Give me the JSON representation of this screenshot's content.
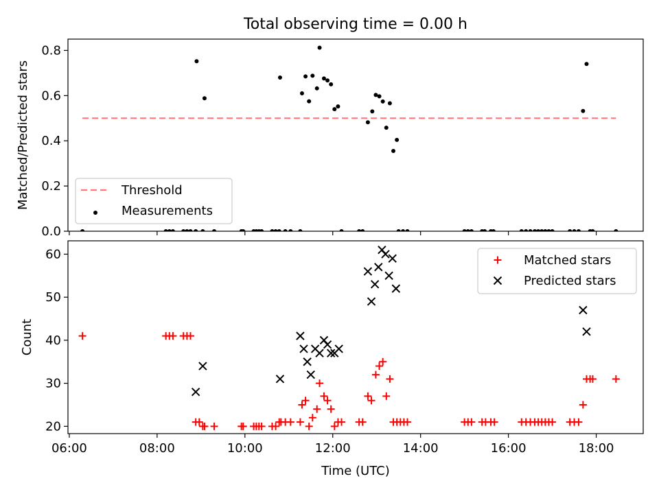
{
  "figure_title": "Total observing time = 0.00 h",
  "chart_data": [
    {
      "type": "scatter",
      "panel": "top",
      "title": "Total observing time = 0.00 h",
      "xlabel": "",
      "ylabel": "Matched/Predicted stars",
      "x_unit": "hours UTC",
      "xlim": [
        5.97,
        19.07
      ],
      "ylim": [
        0.0,
        0.85
      ],
      "xticks": [
        6,
        8,
        10,
        12,
        14,
        16,
        18
      ],
      "xtick_labels": [
        "",
        "",
        "",
        "",
        "",
        "",
        ""
      ],
      "yticks": [
        0.0,
        0.2,
        0.4,
        0.6,
        0.8
      ],
      "ytick_labels": [
        "0.0",
        "0.2",
        "0.4",
        "0.6",
        "0.8"
      ],
      "legend": {
        "position": "lower left",
        "entries": [
          "Threshold",
          "Measurements"
        ]
      },
      "grid": false,
      "series": [
        {
          "name": "Threshold",
          "style": "dashed-line",
          "color": "#ff7777",
          "x": [
            6.3,
            18.45
          ],
          "y": [
            0.5,
            0.5
          ]
        },
        {
          "name": "Measurements",
          "style": "dot",
          "color": "#000000",
          "x": [
            6.3,
            8.2,
            8.28,
            8.36,
            8.6,
            8.68,
            8.76,
            8.88,
            8.9,
            9.04,
            9.08,
            9.3,
            9.92,
            9.96,
            10.2,
            10.26,
            10.32,
            10.38,
            10.62,
            10.7,
            10.78,
            10.8,
            10.92,
            11.04,
            11.26,
            11.3,
            11.38,
            11.46,
            11.54,
            11.64,
            11.7,
            11.8,
            11.88,
            11.96,
            12.04,
            12.12,
            12.2,
            12.6,
            12.68,
            12.8,
            12.9,
            12.98,
            13.06,
            13.14,
            13.22,
            13.3,
            13.38,
            13.46,
            13.5,
            13.6,
            13.7,
            15.0,
            15.08,
            15.16,
            15.4,
            15.46,
            15.6,
            15.66,
            16.3,
            16.4,
            16.5,
            16.6,
            16.68,
            16.76,
            16.84,
            16.92,
            17.0,
            17.4,
            17.5,
            17.6,
            17.7,
            17.78,
            17.86,
            17.92,
            18.45
          ],
          "y": [
            0.0,
            0.0,
            0.0,
            0.0,
            0.0,
            0.0,
            0.0,
            0.0,
            0.752,
            0.0,
            0.588,
            0.0,
            0.0,
            0.0,
            0.0,
            0.0,
            0.0,
            0.0,
            0.0,
            0.0,
            0.0,
            0.68,
            0.0,
            0.0,
            0.0,
            0.61,
            0.685,
            0.575,
            0.688,
            0.632,
            0.812,
            0.676,
            0.667,
            0.65,
            0.54,
            0.552,
            0.0,
            0.0,
            0.0,
            0.482,
            0.53,
            0.603,
            0.597,
            0.574,
            0.458,
            0.566,
            0.355,
            0.404,
            0.0,
            0.0,
            0.0,
            0.0,
            0.0,
            0.0,
            0.0,
            0.0,
            0.0,
            0.0,
            0.0,
            0.0,
            0.0,
            0.0,
            0.0,
            0.0,
            0.0,
            0.0,
            0.0,
            0.0,
            0.0,
            0.0,
            0.532,
            0.74,
            0.0,
            0.0,
            0.0
          ]
        }
      ]
    },
    {
      "type": "scatter",
      "panel": "bottom",
      "title": "",
      "xlabel": "Time (UTC)",
      "ylabel": "Count",
      "x_unit": "hours UTC",
      "xlim": [
        5.97,
        19.07
      ],
      "ylim": [
        18.3,
        63.1
      ],
      "xticks": [
        6,
        8,
        10,
        12,
        14,
        16,
        18
      ],
      "xtick_labels": [
        "06:00",
        "08:00",
        "10:00",
        "12:00",
        "14:00",
        "16:00",
        "18:00"
      ],
      "yticks": [
        20,
        30,
        40,
        50,
        60
      ],
      "ytick_labels": [
        "20",
        "30",
        "40",
        "50",
        "60"
      ],
      "legend": {
        "position": "upper right",
        "entries": [
          "Matched stars",
          "Predicted stars"
        ]
      },
      "grid": false,
      "series": [
        {
          "name": "Matched stars",
          "marker": "plus",
          "color": "#ff0000",
          "x": [
            6.3,
            8.2,
            8.28,
            8.36,
            8.6,
            8.68,
            8.76,
            8.88,
            8.96,
            9.04,
            9.08,
            9.3,
            9.92,
            9.96,
            10.2,
            10.26,
            10.32,
            10.38,
            10.62,
            10.7,
            10.78,
            10.82,
            10.92,
            11.04,
            11.26,
            11.3,
            11.38,
            11.46,
            11.54,
            11.64,
            11.7,
            11.8,
            11.88,
            11.96,
            12.04,
            12.12,
            12.2,
            12.6,
            12.68,
            12.8,
            12.88,
            12.98,
            13.06,
            13.14,
            13.22,
            13.3,
            13.38,
            13.46,
            13.54,
            13.62,
            13.7,
            15.0,
            15.08,
            15.16,
            15.4,
            15.48,
            15.6,
            15.68,
            16.3,
            16.4,
            16.5,
            16.6,
            16.68,
            16.76,
            16.84,
            16.92,
            17.0,
            17.4,
            17.5,
            17.6,
            17.7,
            17.78,
            17.86,
            17.92,
            18.45
          ],
          "y": [
            41,
            41,
            41,
            41,
            41,
            41,
            41,
            21,
            21,
            20,
            20,
            20,
            20,
            20,
            20,
            20,
            20,
            20,
            20,
            20,
            21,
            21,
            21,
            21,
            21,
            25,
            26,
            20,
            22,
            24,
            30,
            27,
            26,
            24,
            20,
            21,
            21,
            21,
            21,
            27,
            26,
            32,
            34,
            35,
            27,
            31,
            21,
            21,
            21,
            21,
            21,
            21,
            21,
            21,
            21,
            21,
            21,
            21,
            21,
            21,
            21,
            21,
            21,
            21,
            21,
            21,
            21,
            21,
            21,
            21,
            25,
            31,
            31,
            31,
            31
          ]
        },
        {
          "name": "Predicted stars",
          "marker": "x",
          "color": "#000000",
          "x": [
            8.88,
            9.04,
            10.8,
            11.26,
            11.34,
            11.42,
            11.5,
            11.6,
            11.7,
            11.8,
            11.88,
            11.96,
            12.04,
            12.14,
            12.8,
            12.88,
            12.96,
            13.04,
            13.12,
            13.2,
            13.28,
            13.36,
            13.44,
            17.7,
            17.78
          ],
          "y": [
            28,
            34,
            31,
            41,
            38,
            35,
            32,
            38,
            37,
            40,
            39,
            37,
            37,
            38,
            56,
            49,
            53,
            57,
            61,
            60,
            55,
            59,
            52,
            47,
            42
          ]
        }
      ]
    }
  ]
}
